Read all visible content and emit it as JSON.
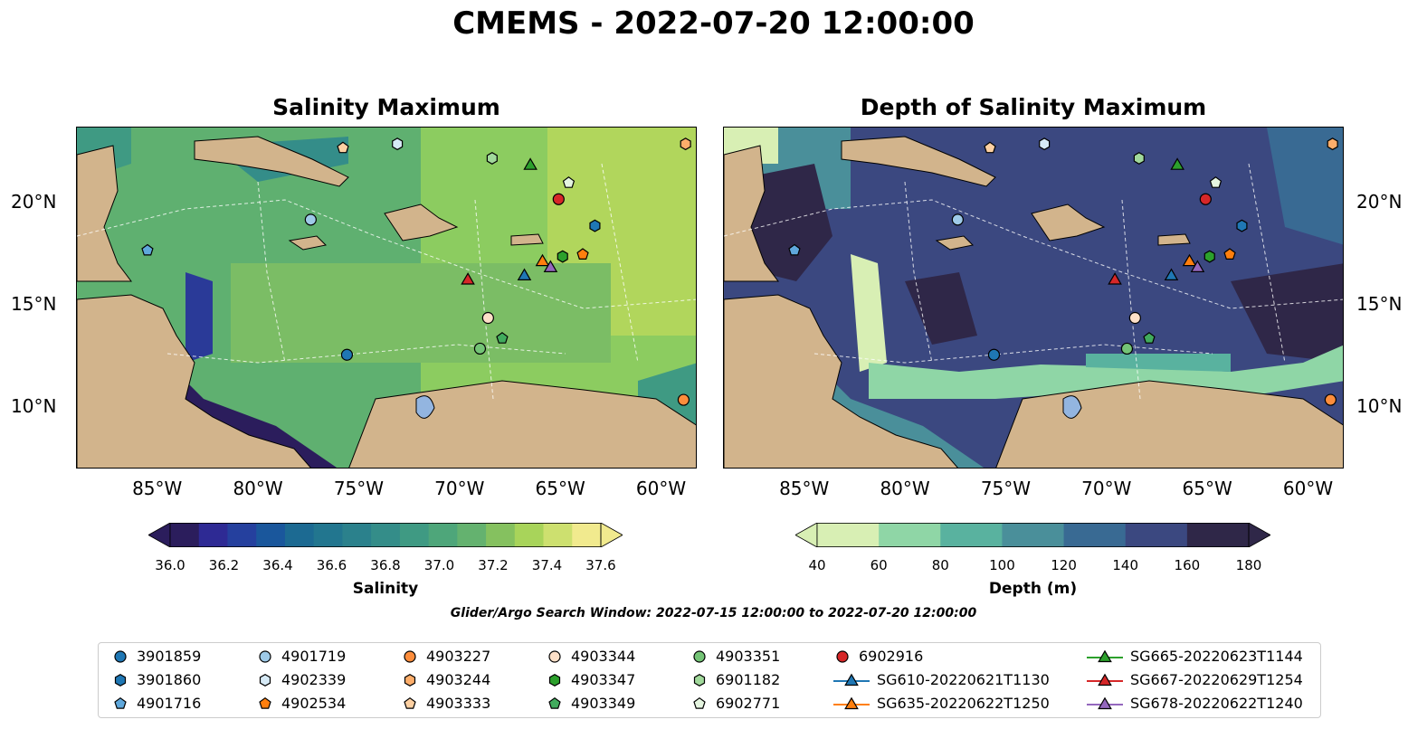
{
  "title": "CMEMS - 2022-07-20 12:00:00",
  "panels": [
    {
      "title": "Salinity Maximum"
    },
    {
      "title": "Depth of Salinity Maximum"
    }
  ],
  "axes": {
    "lon_labels": [
      "85°W",
      "80°W",
      "75°W",
      "70°W",
      "65°W",
      "60°W"
    ],
    "lon_values": [
      -85,
      -80,
      -75,
      -70,
      -65,
      -60
    ],
    "lat_labels": [
      "20°N",
      "15°N",
      "10°N"
    ],
    "lat_values": [
      20,
      15,
      10
    ],
    "lon_range": [
      -89,
      -58.2
    ],
    "lat_range": [
      7,
      23.7
    ]
  },
  "colorbars": [
    {
      "label": "Salinity",
      "ticks": [
        "36.0",
        "36.2",
        "36.4",
        "36.6",
        "36.8",
        "37.0",
        "37.2",
        "37.4",
        "37.6"
      ],
      "colors": [
        "#2b1d5c",
        "#2e2a94",
        "#25409e",
        "#1a579c",
        "#1c6a92",
        "#22768f",
        "#2b818c",
        "#348d89",
        "#3f9a83",
        "#4ea67a",
        "#64b26f",
        "#85c15f",
        "#a8d45a",
        "#cde06f",
        "#f1ea8e"
      ]
    },
    {
      "label": "Depth (m)",
      "ticks": [
        "40",
        "60",
        "80",
        "100",
        "120",
        "140",
        "160",
        "180"
      ],
      "colors": [
        "#d8efb4",
        "#8fd6a6",
        "#59b29f",
        "#4a8f9a",
        "#396a93",
        "#3b4880",
        "#2f2748"
      ]
    }
  ],
  "search_window": "Glider/Argo Search Window: 2022-07-15 12:00:00 to 2022-07-20 12:00:00",
  "legend": [
    {
      "label": "3901859",
      "marker": "circle",
      "color": "#1f77b4"
    },
    {
      "label": "3901860",
      "marker": "hexagon",
      "color": "#1f77b4"
    },
    {
      "label": "4901716",
      "marker": "pentagon",
      "color": "#5fa8dc"
    },
    {
      "label": "4901719",
      "marker": "circle",
      "color": "#9ecae8"
    },
    {
      "label": "4902339",
      "marker": "hexagon",
      "color": "#d6eaf6"
    },
    {
      "label": "4902534",
      "marker": "pentagon",
      "color": "#ff7f0e"
    },
    {
      "label": "4903227",
      "marker": "circle",
      "color": "#fd8d3c"
    },
    {
      "label": "4903244",
      "marker": "hexagon",
      "color": "#fdae6b"
    },
    {
      "label": "4903333",
      "marker": "pentagon",
      "color": "#fdd0a2"
    },
    {
      "label": "4903344",
      "marker": "circle",
      "color": "#fde0c8"
    },
    {
      "label": "4903347",
      "marker": "hexagon",
      "color": "#2ca02c"
    },
    {
      "label": "4903349",
      "marker": "pentagon",
      "color": "#41ab5d"
    },
    {
      "label": "4903351",
      "marker": "circle",
      "color": "#74c476"
    },
    {
      "label": "6901182",
      "marker": "hexagon",
      "color": "#a1d99b"
    },
    {
      "label": "6902771",
      "marker": "pentagon",
      "color": "#e5f5e0"
    },
    {
      "label": "6902916",
      "marker": "circle",
      "color": "#d62728"
    },
    {
      "label": "SG610-20220621T1130",
      "marker": "triangle",
      "color": "#1f77b4"
    },
    {
      "label": "SG635-20220622T1250",
      "marker": "triangle",
      "color": "#ff7f0e"
    },
    {
      "label": "SG665-20220623T1144",
      "marker": "triangle",
      "color": "#2ca02c"
    },
    {
      "label": "SG667-20220629T1254",
      "marker": "triangle",
      "color": "#d62728"
    },
    {
      "label": "SG678-20220622T1240",
      "marker": "triangle",
      "color": "#9467bd"
    }
  ],
  "points": [
    {
      "label": "3901859",
      "lon": -75.6,
      "lat": 12.6
    },
    {
      "label": "3901860",
      "lon": -63.3,
      "lat": 18.9
    },
    {
      "label": "4901716",
      "lon": -85.5,
      "lat": 17.7
    },
    {
      "label": "4901719",
      "lon": -77.4,
      "lat": 19.2
    },
    {
      "label": "4902339",
      "lon": -73.1,
      "lat": 22.9
    },
    {
      "label": "4902534",
      "lon": -63.9,
      "lat": 17.5
    },
    {
      "label": "4903227",
      "lon": -58.9,
      "lat": 10.4
    },
    {
      "label": "4903244",
      "lon": -58.8,
      "lat": 22.9
    },
    {
      "label": "4903333",
      "lon": -75.8,
      "lat": 22.7
    },
    {
      "label": "4903344",
      "lon": -68.6,
      "lat": 14.4
    },
    {
      "label": "4903347",
      "lon": -64.9,
      "lat": 17.4
    },
    {
      "label": "4903349",
      "lon": -67.9,
      "lat": 13.4
    },
    {
      "label": "4903351",
      "lon": -69.0,
      "lat": 12.9
    },
    {
      "label": "6901182",
      "lon": -68.4,
      "lat": 22.2
    },
    {
      "label": "6902771",
      "lon": -64.6,
      "lat": 21.0
    },
    {
      "label": "6902916",
      "lon": -65.1,
      "lat": 20.2
    },
    {
      "label": "SG610-20220621T1130",
      "lon": -66.8,
      "lat": 16.5
    },
    {
      "label": "SG635-20220622T1250",
      "lon": -65.9,
      "lat": 17.2
    },
    {
      "label": "SG665-20220623T1144",
      "lon": -66.5,
      "lat": 21.9
    },
    {
      "label": "SG667-20220629T1254",
      "lon": -69.6,
      "lat": 16.3
    },
    {
      "label": "SG678-20220622T1240",
      "lon": -65.5,
      "lat": 16.9
    }
  ]
}
